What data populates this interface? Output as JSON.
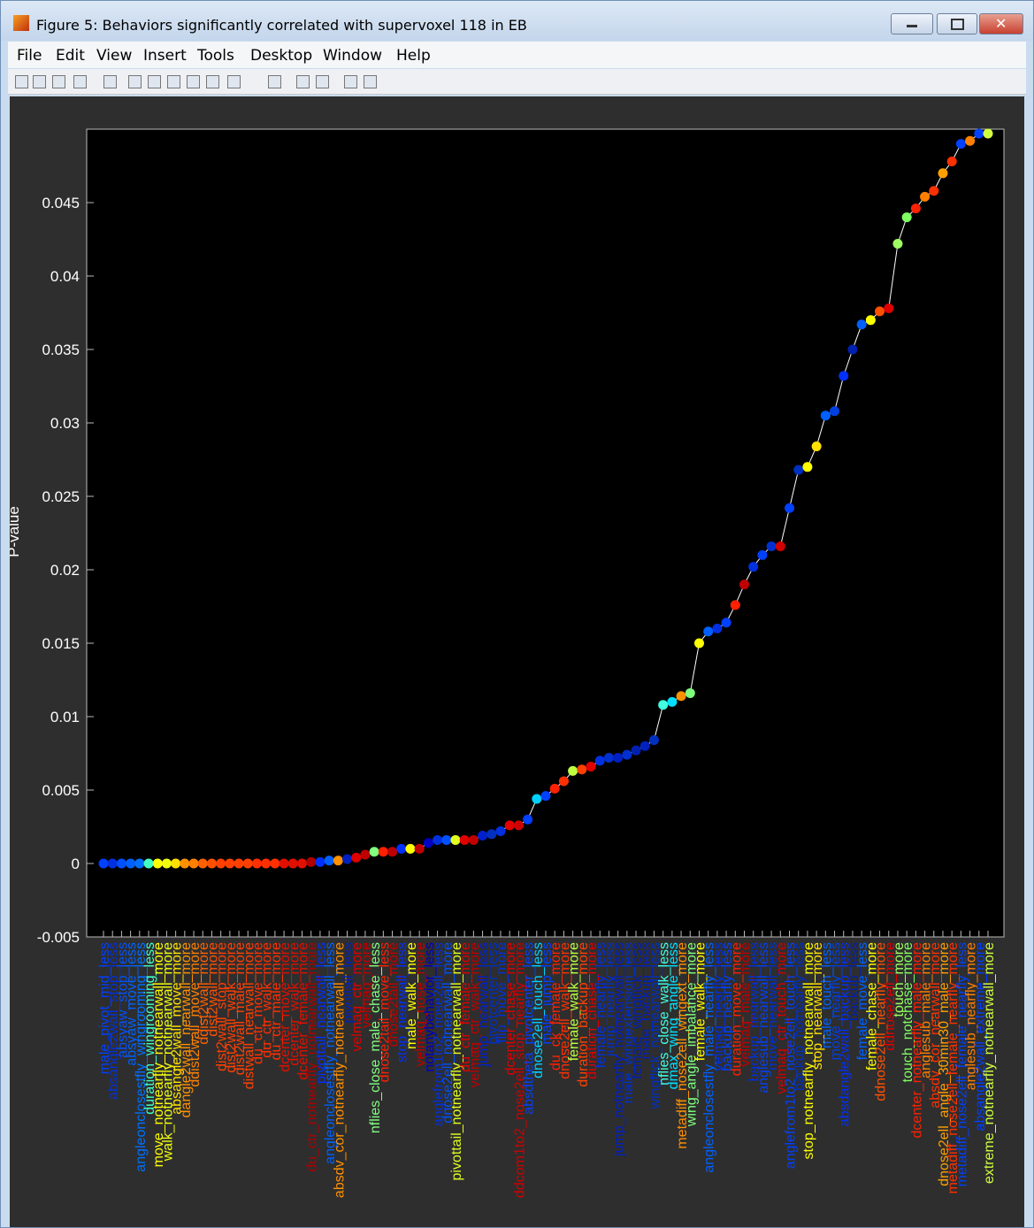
{
  "window": {
    "title": "Figure 5: Behaviors significantly correlated with supervoxel 118 in EB",
    "menu": [
      "File",
      "Edit",
      "View",
      "Insert",
      "Tools",
      "Desktop",
      "Window",
      "Help"
    ]
  },
  "chart_data": {
    "type": "scatter_line",
    "ylabel": "P-value",
    "categories": [
      "male_pivot_mid_less",
      "absangle2wall_stop_less",
      "absyaw_stop_less",
      "absyaw_move_less",
      "angleonclosestfly_wingrooming_less",
      "duration_wingrooming_less",
      "move_notnearfly_notnearwall_more",
      "walk_notnearfly_notnearwall_more",
      "absangle2wall_move_more",
      "dangle2wall_nearwall_more",
      "ddist2wall_move_more",
      "ddist2wall_more",
      "dist2wall_more",
      "dist2wall_stop_more",
      "dist2wall_walk_more",
      "dist2wall_male_more",
      "distwall_nearwall_more",
      "du_ctr_move_more",
      "du_ctr_walk_more",
      "du_ctr_male_more",
      "dcenter_move_more",
      "dcenter_walk_more",
      "dcenter_female_more",
      "du_ctr_notnearfly_notnearwall_more",
      "pivottail_nearwall_less",
      "angleonclosestfly_notnearwall_less",
      "absdv_cor_notnearfly_notnearwall_more",
      "pivottail_less",
      "velmag_ctr_more",
      "velmag_more",
      "nflies_close_male_chase_less",
      "dnose2tail_move_less",
      "dnose2tail_more",
      "stop_nearwall_less",
      "male_walk_more",
      "velmag_nose_more",
      "notanybehavior_less",
      "anglefrom1to2_nose2ell_less",
      "dnose2ell_notnearwall_more",
      "pivottail_notnearfly_notnearwall_more",
      "du_ctr_female_more",
      "velmag_ctr_walk_more",
      "jump_nearwall_less",
      "pivotcenter_less",
      "flip_move_more",
      "dcenter_chase_more",
      "ddcom1to2_nose2ell_stop_nearfly_more",
      "absdtheta_pivotcenter_less",
      "dnose2ell_touch_less",
      "male_jump_less",
      "du_ck_female_more",
      "dnose2ell_walk_more",
      "female_walk_more",
      "duration_backup_more",
      "duration_chase_more",
      "female_nearfly_less",
      "jump_nearfly_less",
      "jump_notnearfly_notnearwall_less",
      "male_wingextension_less",
      "female_wingflick_less",
      "male_backup_less",
      "wingflick_notnearwall_less",
      "nflies_close_walk_less",
      "dmax_wing_angle_less",
      "metadiff_nose2ell_wingext_more",
      "wing_angle_imbalance_more",
      "female_walk_more",
      "angleonclosestfly_male_nearfly_less",
      "velmag_nearfly_less",
      "backup_nearfly_less",
      "duration_move_more",
      "velmag_male_more",
      "backup_nearwall_less",
      "anglesub_nearwall_less",
      "move_nearwall_less",
      "velmag_ctr_touch_more",
      "anglefrom1to2_nose2ell_touch_less",
      "backup_notnearfly_less",
      "stop_notnearfly_notnearwall_more",
      "stop_nearwall_more",
      "male_touch_less",
      "move_nearfly_less",
      "absdangle2wall_backup_less",
      "backup_less",
      "female_move_less",
      "female_chase_more",
      "ddnose2ell_nearfly_more",
      "ddnose2ell_more",
      "touch_more",
      "touch_notchase_more",
      "dcenter_notnearfly_male_more",
      "anglesub_male_more",
      "absdv_cor_nearwall_more",
      "dnose2ell_angle_30min30_male_more",
      "metadiff_nose2ell_female_nearfly_more",
      "metadiff_nose2ell_female_nearfly_less",
      "anglesub_nearfly_more",
      "absangle2wall_extreme_more",
      "extreme_notnearfly_notnearwall_more"
    ],
    "values": [
      0,
      0,
      0,
      0,
      0,
      0,
      0,
      0,
      0,
      0,
      0,
      0,
      0,
      0,
      0,
      0,
      0,
      0,
      0,
      0,
      0,
      0,
      0,
      0.0001,
      0.0001,
      0.0002,
      0.0002,
      0.0003,
      0.0004,
      0.0006,
      0.0008,
      0.0008,
      0.0008,
      0.001,
      0.001,
      0.001,
      0.0014,
      0.0016,
      0.0016,
      0.0016,
      0.0016,
      0.0016,
      0.0019,
      0.002,
      0.0022,
      0.0026,
      0.0026,
      0.003,
      0.0044,
      0.0046,
      0.0051,
      0.0056,
      0.0063,
      0.0064,
      0.0066,
      0.007,
      0.0072,
      0.0072,
      0.0074,
      0.0077,
      0.008,
      0.0084,
      0.0108,
      0.011,
      0.0114,
      0.0116,
      0.015,
      0.0158,
      0.016,
      0.0164,
      0.0176,
      0.019,
      0.0202,
      0.021,
      0.0216,
      0.0216,
      0.0242,
      0.0268,
      0.027,
      0.0284,
      0.0305,
      0.0308,
      0.0332,
      0.035,
      0.0367,
      0.037,
      0.0376,
      0.0378,
      0.0422,
      0.044,
      0.0446,
      0.0454,
      0.0458,
      0.047,
      0.0478,
      0.049,
      0.0492,
      0.0497,
      0.0497
    ],
    "colors": [
      "#0040ff",
      "#0030e0",
      "#0050ff",
      "#0060ff",
      "#0070ff",
      "#40ffc0",
      "#ffff00",
      "#f0ff10",
      "#ffe000",
      "#ff9000",
      "#ff8000",
      "#ff6000",
      "#ff5000",
      "#ff4000",
      "#ff4000",
      "#ff4000",
      "#ff4000",
      "#ff3000",
      "#ff3000",
      "#ff3000",
      "#e01000",
      "#e01000",
      "#e01000",
      "#b00000",
      "#0030ff",
      "#0060ff",
      "#ff9000",
      "#0020c0",
      "#e00000",
      "#c00000",
      "#80ff80",
      "#ff2000",
      "#c00000",
      "#0030ff",
      "#ffff00",
      "#c00000",
      "#0000c0",
      "#0030e0",
      "#0050ff",
      "#e0ff20",
      "#e00000",
      "#c00000",
      "#0020d0",
      "#0030c0",
      "#0030e0",
      "#e00000",
      "#d00000",
      "#0040ff",
      "#00d0ff",
      "#0040ff",
      "#ff2000",
      "#ff3000",
      "#c0ff40",
      "#ff4000",
      "#e00000",
      "#0030e0",
      "#0030d0",
      "#0020c0",
      "#0030d0",
      "#0020b0",
      "#0020c0",
      "#0030c0",
      "#40ffe0",
      "#00e0ff",
      "#ff9000",
      "#80ff80",
      "#ffff00",
      "#0060ff",
      "#0030e0",
      "#0040ff",
      "#ff2000",
      "#c00000",
      "#0030e0",
      "#0040ff",
      "#0030d0",
      "#d00000",
      "#0040ff",
      "#0030c0",
      "#ffff00",
      "#ffe000",
      "#0060ff",
      "#0040e0",
      "#0030ff",
      "#0020b0",
      "#0060ff",
      "#ffff00",
      "#ff5000",
      "#e00000",
      "#a0ff60",
      "#80ff60",
      "#ff2000",
      "#ff8000",
      "#ff3000",
      "#ffa000",
      "#ff3000",
      "#0040ff",
      "#ff8000",
      "#0040ff",
      "#d0ff40"
    ],
    "line_color": "#ffffff",
    "ylim": [
      -0.005,
      0.05
    ],
    "yticks": [
      -0.005,
      0,
      0.005,
      0.01,
      0.015,
      0.02,
      0.025,
      0.03,
      0.035,
      0.04,
      0.045
    ]
  }
}
